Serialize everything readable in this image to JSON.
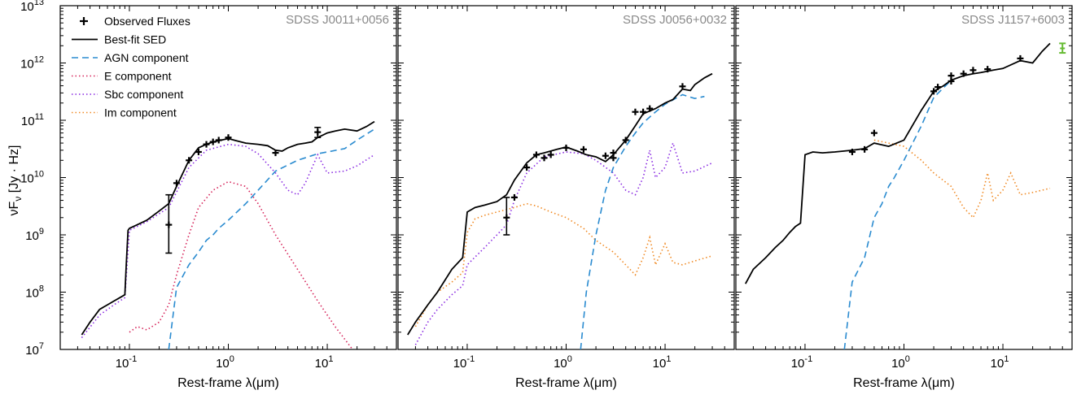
{
  "figure": {
    "ylabel": "νF",
    "ylabel_sub": "ν",
    "ylabel_units": " [Jy · Hz]"
  },
  "colors": {
    "best_fit": "#000000",
    "agn": "#2a8bd0",
    "elliptical": "#d6245a",
    "sbc": "#8a2be2",
    "im": "#f08a24",
    "extra_point": "#66bb33"
  },
  "legend": {
    "placement": "top-left of first panel",
    "entries": [
      {
        "label": "Observed Fluxes",
        "marker": "plus"
      },
      {
        "label": "Best-fit SED",
        "style": "solid",
        "color": "#000000"
      },
      {
        "label": "AGN component",
        "style": "dashed",
        "color": "#2a8bd0"
      },
      {
        "label": "E component",
        "style": "dotted",
        "color": "#d6245a"
      },
      {
        "label": "Sbc component",
        "style": "dotted",
        "color": "#8a2be2"
      },
      {
        "label": "Im component",
        "style": "dotted",
        "color": "#f08a24"
      }
    ]
  },
  "chart_data": [
    {
      "type": "line",
      "title": "SDSS J0011+0056",
      "xlabel": "Rest-frame λ(μm)",
      "ylabel": "νFν [Jy · Hz]",
      "xscale": "log",
      "yscale": "log",
      "xlim": [
        0.02,
        50
      ],
      "ylim": [
        10000000.0,
        10000000000000.0
      ],
      "xtick_labels": [
        "10^-1",
        "10^0",
        "10^1"
      ],
      "ytick_labels": [
        "10^7",
        "10^8",
        "10^9",
        "10^10",
        "10^11",
        "10^12",
        "10^13"
      ],
      "series": [
        {
          "name": "Best-fit SED",
          "color": "#000000",
          "style": "solid",
          "x": [
            0.033,
            0.04,
            0.05,
            0.06,
            0.07,
            0.08,
            0.09,
            0.093,
            0.097,
            0.1,
            0.12,
            0.15,
            0.2,
            0.25,
            0.3,
            0.4,
            0.5,
            0.6,
            0.7,
            0.8,
            1.0,
            1.2,
            1.5,
            2.0,
            2.5,
            3.0,
            3.5,
            4.0,
            5.0,
            6.0,
            7.0,
            8.0,
            9.0,
            10.0,
            12.0,
            15.0,
            20.0,
            25.0,
            30.0
          ],
          "y": [
            18000000.0,
            30000000.0,
            50000000.0,
            60000000.0,
            70000000.0,
            80000000.0,
            90000000.0,
            300000000.0,
            1200000000.0,
            1300000000.0,
            1500000000.0,
            1800000000.0,
            2600000000.0,
            3500000000.0,
            7000000000.0,
            20000000000.0,
            33000000000.0,
            38000000000.0,
            42000000000.0,
            44000000000.0,
            48000000000.0,
            44000000000.0,
            40000000000.0,
            38000000000.0,
            36000000000.0,
            30000000000.0,
            29000000000.0,
            33000000000.0,
            38000000000.0,
            40000000000.0,
            42000000000.0,
            50000000000.0,
            55000000000.0,
            60000000000.0,
            65000000000.0,
            70000000000.0,
            65000000000.0,
            78000000000.0,
            95000000000.0
          ]
        },
        {
          "name": "AGN component",
          "color": "#2a8bd0",
          "style": "dashed",
          "x": [
            0.25,
            0.3,
            0.4,
            0.5,
            0.6,
            0.7,
            0.8,
            1.0,
            1.5,
            2.0,
            3.0,
            5.0,
            8.0,
            10.0,
            15.0,
            20.0,
            30.0
          ],
          "y": [
            10000000.0,
            120000000.0,
            300000000.0,
            500000000.0,
            800000000.0,
            1000000000.0,
            1300000000.0,
            1800000000.0,
            3500000000.0,
            6000000000.0,
            13000000000.0,
            20000000000.0,
            26000000000.0,
            28000000000.0,
            32000000000.0,
            45000000000.0,
            70000000000.0
          ]
        },
        {
          "name": "E component",
          "color": "#d6245a",
          "style": "dotted",
          "x": [
            0.1,
            0.12,
            0.15,
            0.2,
            0.25,
            0.3,
            0.4,
            0.5,
            0.7,
            1.0,
            1.5,
            2.0,
            3.0,
            5.0,
            8.0,
            12.0,
            18.0
          ],
          "y": [
            20000000.0,
            25000000.0,
            22000000.0,
            30000000.0,
            60000000.0,
            200000000.0,
            1000000000.0,
            3000000000.0,
            6000000000.0,
            8500000000.0,
            7000000000.0,
            3500000000.0,
            1000000000.0,
            250000000.0,
            70000000.0,
            25000000.0,
            10000000.0
          ]
        },
        {
          "name": "Sbc component",
          "color": "#8a2be2",
          "style": "dotted",
          "x": [
            0.033,
            0.05,
            0.07,
            0.09,
            0.1,
            0.15,
            0.25,
            0.4,
            0.6,
            1.0,
            1.5,
            2.0,
            3.0,
            4.0,
            5.0,
            6.0,
            8.0,
            10.0,
            15.0,
            20.0,
            30.0
          ],
          "y": [
            16000000.0,
            40000000.0,
            60000000.0,
            80000000.0,
            1200000000.0,
            1700000000.0,
            3000000000.0,
            15000000000.0,
            30000000000.0,
            38000000000.0,
            35000000000.0,
            26000000000.0,
            12000000000.0,
            6000000000.0,
            5000000000.0,
            8000000000.0,
            25000000000.0,
            12000000000.0,
            13000000000.0,
            16000000000.0,
            25000000000.0
          ]
        }
      ],
      "observed_fluxes": {
        "x": [
          0.25,
          0.3,
          0.4,
          0.5,
          0.6,
          0.7,
          0.8,
          1.0,
          3.0,
          8.0
        ],
        "y": [
          1500000000.0,
          8000000000.0,
          20000000000.0,
          28000000000.0,
          38000000000.0,
          42000000000.0,
          45000000000.0,
          50000000000.0,
          27000000000.0,
          62000000000.0
        ],
        "yerr_low": [
          480000000.0,
          null,
          null,
          null,
          null,
          null,
          null,
          null,
          null,
          50000000000.0
        ],
        "yerr_high": [
          5000000000.0,
          null,
          null,
          null,
          null,
          null,
          null,
          null,
          null,
          75000000000.0
        ]
      }
    },
    {
      "type": "line",
      "title": "SDSS J0056+0032",
      "xlabel": "Rest-frame λ(μm)",
      "xscale": "log",
      "yscale": "log",
      "xlim": [
        0.02,
        50
      ],
      "ylim": [
        10000000.0,
        10000000000000.0
      ],
      "xtick_labels": [
        "10^-1",
        "10^0",
        "10^1"
      ],
      "series": [
        {
          "name": "Best-fit SED",
          "color": "#000000",
          "style": "solid",
          "x": [
            0.025,
            0.03,
            0.04,
            0.05,
            0.07,
            0.09,
            0.1,
            0.12,
            0.15,
            0.2,
            0.25,
            0.3,
            0.4,
            0.5,
            0.6,
            0.8,
            1.0,
            1.3,
            1.6,
            2.0,
            2.5,
            3.0,
            4.0,
            5.0,
            6.0,
            8.0,
            10.0,
            12.0,
            15.0,
            18.0,
            20.0,
            25.0,
            30.0
          ],
          "y": [
            18000000.0,
            30000000.0,
            60000000.0,
            100000000.0,
            250000000.0,
            400000000.0,
            2500000000.0,
            3000000000.0,
            3300000000.0,
            3800000000.0,
            5000000000.0,
            9000000000.0,
            18000000000.0,
            25000000000.0,
            27000000000.0,
            31000000000.0,
            34000000000.0,
            29000000000.0,
            25000000000.0,
            23000000000.0,
            19000000000.0,
            25000000000.0,
            45000000000.0,
            80000000000.0,
            130000000000.0,
            160000000000.0,
            200000000000.0,
            230000000000.0,
            350000000000.0,
            330000000000.0,
            420000000000.0,
            550000000000.0,
            650000000000.0
          ]
        },
        {
          "name": "AGN component",
          "color": "#2a8bd0",
          "style": "dashed",
          "x": [
            1.4,
            1.6,
            2.0,
            2.5,
            3.0,
            4.0,
            5.0,
            6.0,
            8.0,
            10.0,
            15.0,
            20.0,
            25.0
          ],
          "y": [
            10000000.0,
            100000000.0,
            1000000000.0,
            6000000000.0,
            15000000000.0,
            35000000000.0,
            60000000000.0,
            90000000000.0,
            140000000000.0,
            190000000000.0,
            280000000000.0,
            240000000000.0,
            260000000000.0
          ]
        },
        {
          "name": "Sbc component",
          "color": "#8a2be2",
          "style": "dotted",
          "x": [
            0.03,
            0.04,
            0.05,
            0.07,
            0.09,
            0.1,
            0.15,
            0.2,
            0.25,
            0.3,
            0.4,
            0.6,
            1.0,
            1.5,
            2.0,
            3.0,
            4.0,
            5.0,
            6.0,
            7.0,
            8.0,
            10.0,
            12.0,
            15.0,
            20.0,
            30.0
          ],
          "y": [
            12000000.0,
            30000000.0,
            50000000.0,
            90000000.0,
            130000000.0,
            300000000.0,
            600000000.0,
            1000000000.0,
            1500000000.0,
            4000000000.0,
            12000000000.0,
            23000000000.0,
            28000000000.0,
            26000000000.0,
            20000000000.0,
            12000000000.0,
            6000000000.0,
            5000000000.0,
            10000000000.0,
            30000000000.0,
            10000000000.0,
            15000000000.0,
            40000000000.0,
            12000000000.0,
            13000000000.0,
            18000000000.0
          ]
        },
        {
          "name": "Im component",
          "color": "#f08a24",
          "style": "dotted",
          "x": [
            0.03,
            0.04,
            0.05,
            0.07,
            0.09,
            0.1,
            0.12,
            0.15,
            0.2,
            0.3,
            0.4,
            0.5,
            0.7,
            1.0,
            1.5,
            2.0,
            3.0,
            4.0,
            5.0,
            6.0,
            7.0,
            8.0,
            10.0,
            12.0,
            15.0,
            20.0,
            30.0
          ],
          "y": [
            25000000.0,
            60000000.0,
            100000000.0,
            150000000.0,
            220000000.0,
            1100000000.0,
            1900000000.0,
            2200000000.0,
            2500000000.0,
            3000000000.0,
            3500000000.0,
            3200000000.0,
            2500000000.0,
            2000000000.0,
            1300000000.0,
            800000000.0,
            500000000.0,
            300000000.0,
            200000000.0,
            400000000.0,
            900000000.0,
            300000000.0,
            700000000.0,
            330000000.0,
            300000000.0,
            350000000.0,
            430000000.0
          ]
        }
      ],
      "observed_fluxes": {
        "x": [
          0.25,
          0.3,
          0.4,
          0.5,
          0.6,
          0.7,
          1.0,
          1.5,
          2.5,
          3.0,
          3.0,
          4.0,
          5.0,
          6.0,
          7.0,
          15.0
        ],
        "y": [
          2000000000.0,
          4500000000.0,
          15000000000.0,
          25000000000.0,
          22000000000.0,
          25000000000.0,
          33000000000.0,
          31000000000.0,
          24000000000.0,
          22000000000.0,
          27000000000.0,
          45000000000.0,
          140000000000.0,
          140000000000.0,
          160000000000.0,
          390000000000.0
        ],
        "yerr_low": [
          1000000000.0,
          null,
          null,
          null,
          null,
          null,
          null,
          null,
          null,
          null,
          null,
          null,
          null,
          null,
          null,
          null
        ],
        "yerr_high": [
          4500000000.0,
          null,
          null,
          null,
          null,
          null,
          null,
          null,
          null,
          null,
          null,
          null,
          null,
          null,
          null,
          null
        ]
      }
    },
    {
      "type": "line",
      "title": "SDSS J1157+6003",
      "xlabel": "Rest-frame λ(μm)",
      "xscale": "log",
      "yscale": "log",
      "xlim": [
        0.02,
        50
      ],
      "ylim": [
        10000000.0,
        10000000000000.0
      ],
      "xtick_labels": [
        "10^-1",
        "10^0",
        "10^1"
      ],
      "series": [
        {
          "name": "Best-fit SED",
          "color": "#000000",
          "style": "solid",
          "x": [
            0.025,
            0.03,
            0.04,
            0.05,
            0.06,
            0.07,
            0.08,
            0.09,
            0.1,
            0.12,
            0.15,
            0.2,
            0.3,
            0.4,
            0.5,
            0.7,
            1.0,
            1.5,
            2.0,
            2.5,
            3.0,
            4.0,
            5.0,
            6.0,
            8.0,
            10.0,
            15.0,
            20.0,
            25.0,
            30.0
          ],
          "y": [
            140000000.0,
            250000000.0,
            400000000.0,
            600000000.0,
            800000000.0,
            1100000000.0,
            1400000000.0,
            1600000000.0,
            25000000000.0,
            28000000000.0,
            27000000000.0,
            28000000000.0,
            30000000000.0,
            32000000000.0,
            40000000000.0,
            35000000000.0,
            45000000000.0,
            150000000000.0,
            320000000000.0,
            400000000000.0,
            500000000000.0,
            600000000000.0,
            650000000000.0,
            680000000000.0,
            750000000000.0,
            800000000000.0,
            1100000000000.0,
            1000000000000.0,
            1600000000000.0,
            2200000000000.0
          ]
        },
        {
          "name": "AGN component",
          "color": "#2a8bd0",
          "style": "dashed",
          "x": [
            0.25,
            0.3,
            0.4,
            0.5,
            0.6,
            0.7,
            0.8,
            1.0,
            1.5,
            2.0,
            3.0
          ],
          "y": [
            10000000.0,
            150000000.0,
            400000000.0,
            2000000000.0,
            3500000000.0,
            7000000000.0,
            10000000000.0,
            20000000000.0,
            80000000000.0,
            250000000000.0,
            500000000000.0
          ]
        },
        {
          "name": "Im component",
          "color": "#f08a24",
          "style": "dotted",
          "x": [
            0.5,
            0.7,
            1.0,
            1.5,
            2.0,
            3.0,
            4.0,
            5.0,
            6.0,
            7.0,
            8.0,
            10.0,
            12.0,
            15.0,
            20.0,
            30.0
          ],
          "y": [
            45000000000.0,
            40000000000.0,
            35000000000.0,
            20000000000.0,
            12000000000.0,
            7000000000.0,
            3000000000.0,
            2000000000.0,
            4000000000.0,
            12000000000.0,
            4000000000.0,
            6000000000.0,
            12000000000.0,
            5000000000.0,
            5500000000.0,
            6500000000.0
          ]
        }
      ],
      "observed_fluxes": {
        "x": [
          0.3,
          0.4,
          0.5,
          2.0,
          2.2,
          3.0,
          3.0,
          4.0,
          5.0,
          7.0,
          15.0
        ],
        "y": [
          28000000000.0,
          31000000000.0,
          60000000000.0,
          320000000000.0,
          380000000000.0,
          480000000000.0,
          600000000000.0,
          650000000000.0,
          750000000000.0,
          780000000000.0,
          1200000000000.0
        ],
        "yerr_low": [
          null,
          null,
          null,
          null,
          null,
          null,
          null,
          null,
          null,
          null,
          null
        ],
        "yerr_high": [
          null,
          null,
          null,
          null,
          null,
          null,
          null,
          null,
          null,
          null,
          null
        ]
      },
      "extra_point": {
        "x": 40.0,
        "y": 1800000000000.0,
        "yerr_low": 1500000000000.0,
        "yerr_high": 2200000000000.0,
        "color": "#66bb33"
      }
    }
  ]
}
